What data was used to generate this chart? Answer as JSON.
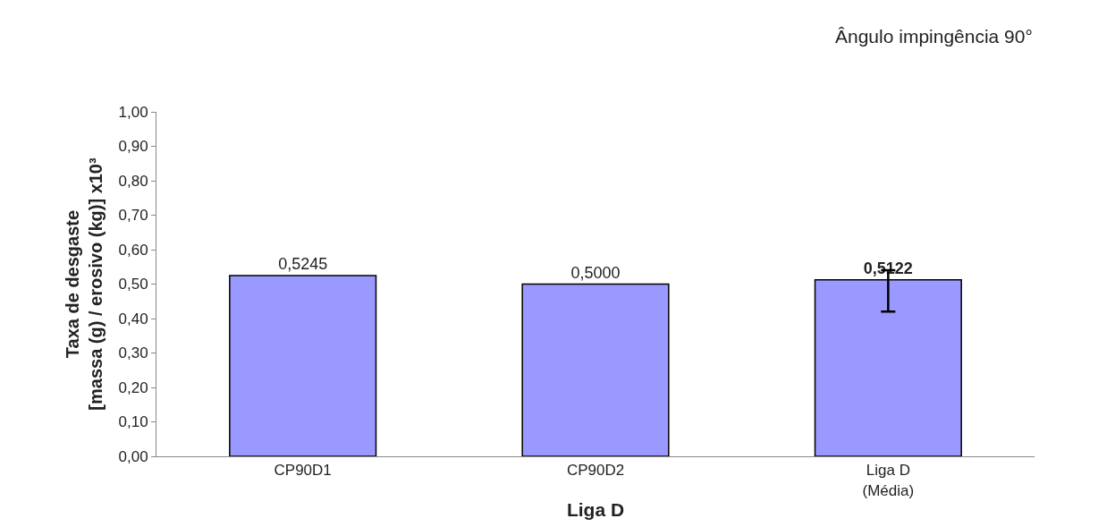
{
  "chart_data": {
    "type": "bar",
    "title": "Ângulo impingência 90°",
    "xlabel": "Liga D",
    "ylabel": "Taxa de desgaste\n[massa (g) / erosivo (kg)] x10³",
    "categories": [
      "CP90D1",
      "CP90D2",
      "Liga D\n(Média)"
    ],
    "values": [
      0.5245,
      0.5,
      0.5122
    ],
    "value_labels": [
      "0,5245",
      "0,5000",
      "0,5122"
    ],
    "errors": [
      null,
      null,
      [
        0.42,
        0.54
      ]
    ],
    "color": "#9999ff",
    "ylim": [
      0,
      1
    ],
    "yticks": [
      {
        "value": 0,
        "label": "0,00"
      },
      {
        "value": 0.1,
        "label": "0,10"
      },
      {
        "value": 0.2,
        "label": "0,20"
      },
      {
        "value": 0.3,
        "label": "0,30"
      },
      {
        "value": 0.4,
        "label": "0,40"
      },
      {
        "value": 0.5,
        "label": "0,50"
      },
      {
        "value": 0.6,
        "label": "0,60"
      },
      {
        "value": 0.7,
        "label": "0,70"
      },
      {
        "value": 0.8,
        "label": "0,80"
      },
      {
        "value": 0.9,
        "label": "0,90"
      },
      {
        "value": 1.0,
        "label": "1,00"
      }
    ],
    "orientation": "vertical"
  }
}
